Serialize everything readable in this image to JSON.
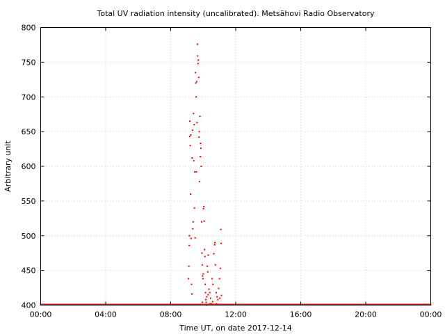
{
  "chart_data": {
    "type": "scatter",
    "title": "Total UV radiation intensity (uncalibrated). Metsähovi Radio Observatory",
    "xlabel": "Time UT, on date 2017-12-14",
    "ylabel": "Arbitrary unit",
    "xlim_hours": [
      0,
      24
    ],
    "ylim": [
      400,
      800
    ],
    "x_ticks": [
      {
        "hour": 0,
        "label": "00:00"
      },
      {
        "hour": 4,
        "label": "04:00"
      },
      {
        "hour": 8,
        "label": "08:00"
      },
      {
        "hour": 12,
        "label": "12:00"
      },
      {
        "hour": 16,
        "label": "16:00"
      },
      {
        "hour": 20,
        "label": "20:00"
      },
      {
        "hour": 24,
        "label": "00:00"
      }
    ],
    "y_ticks": [
      400,
      450,
      500,
      550,
      600,
      650,
      700,
      750,
      800
    ],
    "grid": true,
    "marker_color": "#ff0000",
    "baseline": {
      "value": 400,
      "x_start_hour": 0,
      "x_end_hour": 24,
      "interval_hours": 0.05
    },
    "points": [
      [
        9.1,
        438
      ],
      [
        9.12,
        456
      ],
      [
        9.14,
        486
      ],
      [
        9.15,
        500
      ],
      [
        9.17,
        643
      ],
      [
        9.18,
        665
      ],
      [
        9.2,
        630
      ],
      [
        9.22,
        560
      ],
      [
        9.24,
        645
      ],
      [
        9.26,
        496
      ],
      [
        9.28,
        430
      ],
      [
        9.3,
        416
      ],
      [
        9.32,
        612
      ],
      [
        9.34,
        652
      ],
      [
        9.36,
        510
      ],
      [
        9.38,
        520
      ],
      [
        9.4,
        676
      ],
      [
        9.42,
        608
      ],
      [
        9.44,
        660
      ],
      [
        9.46,
        540
      ],
      [
        9.48,
        592
      ],
      [
        9.5,
        497
      ],
      [
        9.52,
        735
      ],
      [
        9.54,
        720
      ],
      [
        9.56,
        700
      ],
      [
        9.58,
        592
      ],
      [
        9.6,
        722
      ],
      [
        9.62,
        663
      ],
      [
        9.64,
        776
      ],
      [
        9.66,
        759
      ],
      [
        9.68,
        748
      ],
      [
        9.7,
        753
      ],
      [
        9.72,
        728
      ],
      [
        9.74,
        642
      ],
      [
        9.76,
        650
      ],
      [
        9.78,
        578
      ],
      [
        9.8,
        672
      ],
      [
        9.82,
        614
      ],
      [
        9.84,
        633
      ],
      [
        9.86,
        626
      ],
      [
        9.88,
        600
      ],
      [
        9.9,
        520
      ],
      [
        9.92,
        475
      ],
      [
        9.94,
        458
      ],
      [
        9.96,
        442
      ],
      [
        9.98,
        438
      ],
      [
        10.0,
        445
      ],
      [
        10.02,
        539
      ],
      [
        10.04,
        542
      ],
      [
        10.06,
        521
      ],
      [
        10.08,
        480
      ],
      [
        10.1,
        470
      ],
      [
        10.12,
        430
      ],
      [
        10.14,
        418
      ],
      [
        10.16,
        408
      ],
      [
        10.18,
        404
      ],
      [
        10.2,
        400
      ],
      [
        10.22,
        412
      ],
      [
        10.25,
        456
      ],
      [
        10.28,
        448
      ],
      [
        10.31,
        472
      ],
      [
        10.35,
        423
      ],
      [
        10.4,
        418
      ],
      [
        10.45,
        410
      ],
      [
        10.5,
        402
      ],
      [
        10.55,
        438
      ],
      [
        10.6,
        430
      ],
      [
        10.65,
        474
      ],
      [
        10.7,
        487
      ],
      [
        10.72,
        490
      ],
      [
        10.75,
        458
      ],
      [
        10.8,
        418
      ],
      [
        10.85,
        412
      ],
      [
        10.9,
        408
      ],
      [
        10.95,
        424
      ],
      [
        11.0,
        438
      ],
      [
        11.05,
        453
      ],
      [
        11.08,
        509
      ],
      [
        11.1,
        489
      ],
      [
        11.12,
        414
      ],
      [
        11.15,
        401
      ],
      [
        10.3,
        415
      ],
      [
        10.42,
        402
      ],
      [
        10.58,
        405
      ],
      [
        10.82,
        402
      ],
      [
        11.02,
        410
      ],
      [
        9.95,
        404
      ],
      [
        10.05,
        401
      ]
    ]
  }
}
